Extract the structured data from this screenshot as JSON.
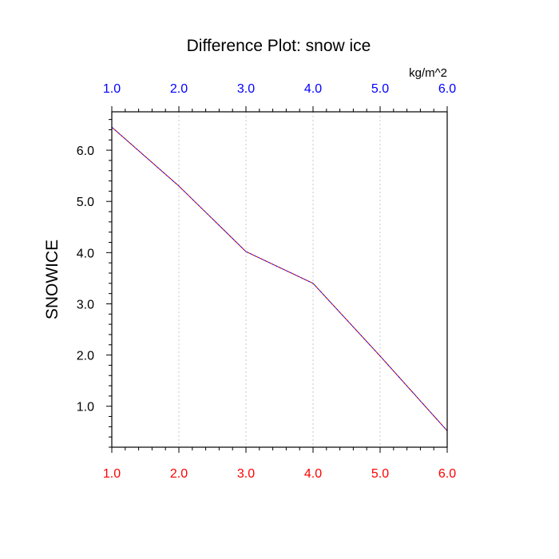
{
  "chart_data": {
    "type": "line",
    "title": "Difference Plot: snow ice",
    "units": "kg/m^2",
    "ylabel": "SNOWICE",
    "xlim": [
      1.0,
      6.0
    ],
    "ylim": [
      0.2,
      6.75
    ],
    "xticks_bottom": [
      "1.0",
      "2.0",
      "3.0",
      "4.0",
      "5.0",
      "6.0"
    ],
    "xticks_top": [
      "1.0",
      "2.0",
      "3.0",
      "4.0",
      "5.0",
      "6.0"
    ],
    "yticks": [
      "1.0",
      "2.0",
      "3.0",
      "4.0",
      "5.0",
      "6.0"
    ],
    "grid": "vertical-dotted",
    "series": [
      {
        "x": [
          1.0,
          2.0,
          3.0,
          4.0,
          5.0,
          6.0
        ],
        "values": [
          6.45,
          5.3,
          4.02,
          3.4,
          1.98,
          0.52
        ]
      }
    ],
    "colors": {
      "series_a": "#0000ff",
      "series_b": "#cc0000",
      "bottom_ticks": "#ff0000",
      "top_ticks": "#0000ff",
      "grid": "#c8c8c8",
      "axis": "#000000"
    }
  }
}
